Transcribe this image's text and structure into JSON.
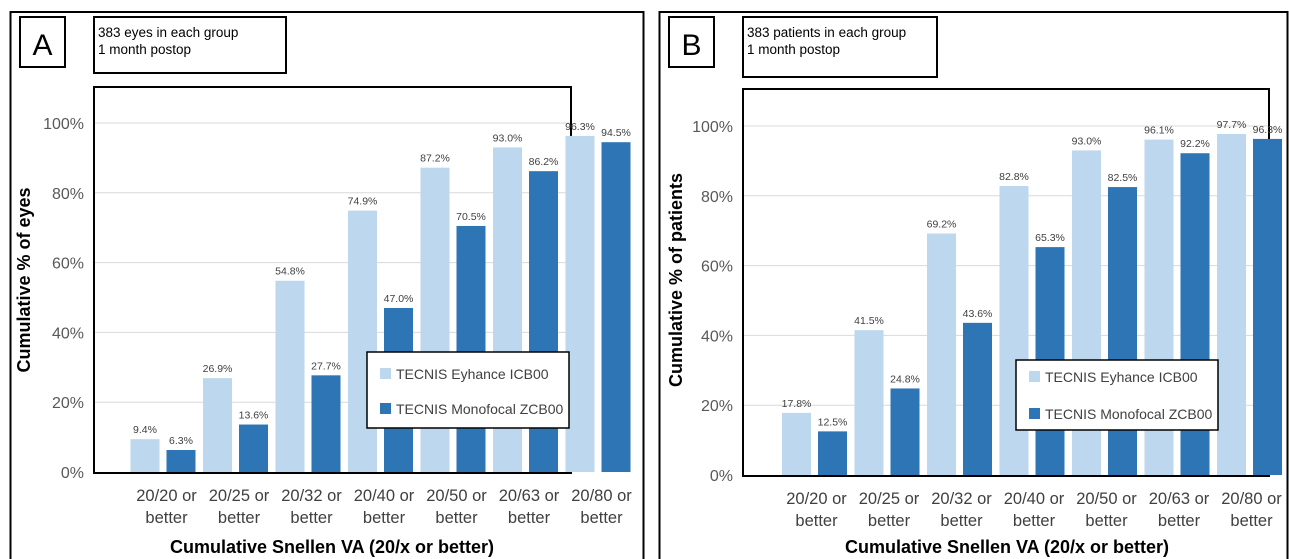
{
  "chart_data": [
    {
      "type": "bar",
      "panel_label": "A",
      "info_lines": [
        "383 eyes in each group",
        "1 month postop"
      ],
      "xlabel": "Cumulative Snellen VA (20/x or better)",
      "ylabel": "Cumulative % of eyes",
      "categories": [
        "20/20 or better",
        "20/25 or better",
        "20/32 or better",
        "20/40 or better",
        "20/50 or better",
        "20/63 or better",
        "20/80 or better"
      ],
      "series": [
        {
          "name": "TECNIS Eyhance ICB00",
          "values": [
            9.4,
            26.9,
            54.8,
            74.9,
            87.2,
            93.0,
            96.3
          ],
          "color": "#bdd7ee"
        },
        {
          "name": "TECNIS Monofocal ZCB00",
          "values": [
            6.3,
            13.6,
            27.7,
            47.0,
            70.5,
            86.2,
            94.5
          ],
          "color": "#2e75b6"
        }
      ],
      "data_labels": [
        [
          "9.4%",
          "26.9%",
          "54.8%",
          "74.9%",
          "87.2%",
          "93.0%",
          "96.3%"
        ],
        [
          "6.3%",
          "13.6%",
          "27.7%",
          "47.0%",
          "70.5%",
          "86.2%",
          "94.5%"
        ]
      ],
      "ylim": [
        0,
        100
      ],
      "yticks": [
        "0%",
        "20%",
        "40%",
        "60%",
        "80%",
        "100%"
      ],
      "grid": true,
      "legend_position": "center-right"
    },
    {
      "type": "bar",
      "panel_label": "B",
      "info_lines": [
        "383 patients in each group",
        "1 month postop"
      ],
      "xlabel": "Cumulative Snellen VA (20/x or better)",
      "ylabel": "Cumulative % of patients",
      "categories": [
        "20/20 or better",
        "20/25 or better",
        "20/32 or better",
        "20/40 or better",
        "20/50 or better",
        "20/63 or better",
        "20/80 or better"
      ],
      "series": [
        {
          "name": "TECNIS Eyhance ICB00",
          "values": [
            17.8,
            41.5,
            69.2,
            82.8,
            93.0,
            96.1,
            97.7
          ],
          "color": "#bdd7ee"
        },
        {
          "name": "TECNIS Monofocal ZCB00",
          "values": [
            12.5,
            24.8,
            43.6,
            65.3,
            82.5,
            92.2,
            96.3
          ],
          "color": "#2e75b6"
        }
      ],
      "data_labels": [
        [
          "17.8%",
          "41.5%",
          "69.2%",
          "82.8%",
          "93.0%",
          "96.1%",
          "97.7%"
        ],
        [
          "12.5%",
          "24.8%",
          "43.6%",
          "65.3%",
          "82.5%",
          "92.2%",
          "96.3%"
        ]
      ],
      "ylim": [
        0,
        100
      ],
      "yticks": [
        "0%",
        "20%",
        "40%",
        "60%",
        "80%",
        "100%"
      ],
      "grid": true,
      "legend_position": "center-right"
    }
  ]
}
